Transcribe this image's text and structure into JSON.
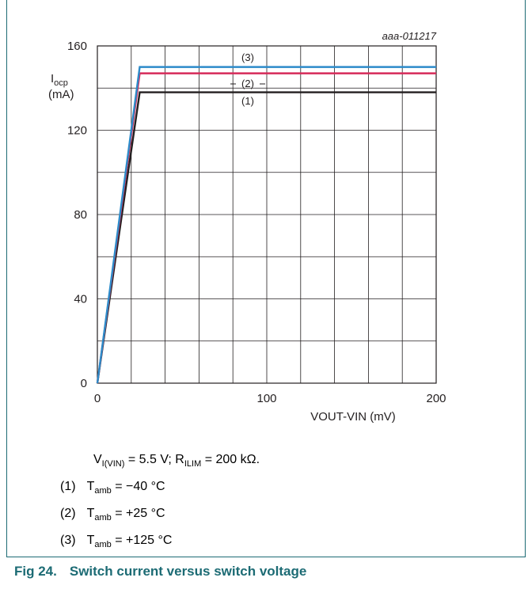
{
  "chart_data": {
    "type": "line",
    "id_label": "aaa-011217",
    "ylabel_main": "I",
    "ylabel_sub": "ocp",
    "ylabel_unit": "(mA)",
    "xlabel": "VOUT-VIN (mV)",
    "xlim": [
      0,
      200
    ],
    "ylim": [
      0,
      160
    ],
    "x_ticks": [
      0,
      100,
      200
    ],
    "y_ticks": [
      0,
      40,
      80,
      120,
      160
    ],
    "x_minor_step": 20,
    "y_minor_step": 20,
    "grid": true,
    "series": [
      {
        "name": "(1)",
        "color": "#231f20",
        "x": [
          0,
          25,
          200
        ],
        "y": [
          0,
          138,
          138
        ]
      },
      {
        "name": "(2)",
        "color": "#d62b5a",
        "x": [
          0,
          25,
          200
        ],
        "y": [
          0,
          147,
          147
        ]
      },
      {
        "name": "(3)",
        "color": "#2d8bc9",
        "x": [
          0,
          25,
          200
        ],
        "y": [
          0,
          150,
          150
        ]
      }
    ]
  },
  "conditions": {
    "v_main": "V",
    "v_sub": "I(VIN)",
    "v_value": " = 5.5 V; R",
    "r_sub": "ILIM",
    "r_value": " = 200 kΩ."
  },
  "notes": [
    {
      "num": "(1)",
      "t": "T",
      "sub": "amb",
      "value": " = −40 °C"
    },
    {
      "num": "(2)",
      "t": "T",
      "sub": "amb",
      "value": " = +25 °C"
    },
    {
      "num": "(3)",
      "t": "T",
      "sub": "amb",
      "value": " = +125 °C"
    }
  ],
  "figure": {
    "number": "Fig 24.",
    "title": "Switch current versus switch voltage"
  }
}
